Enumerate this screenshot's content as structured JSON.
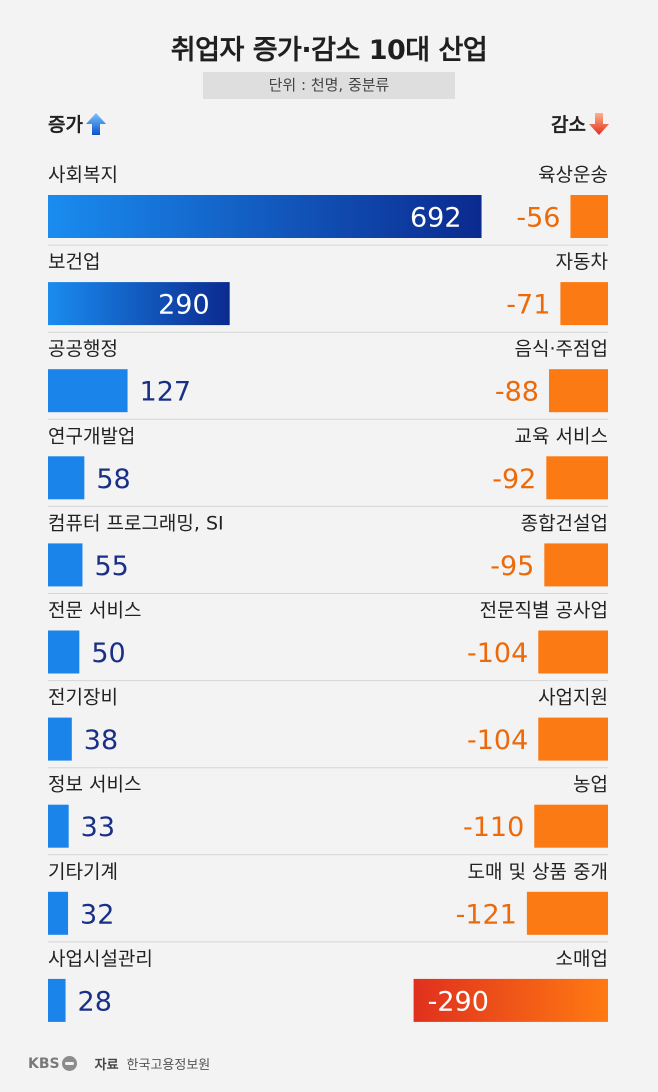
{
  "title": "취업자 증가·감소 10대 산업",
  "unit": "단위 : 천명, 중분류",
  "increase_label": "증가",
  "decrease_label": "감소",
  "colors": {
    "increase_light": "#1a8cf0",
    "increase_dark": "#0b2a8f",
    "decrease_light": "#ff7a12",
    "decrease_dark": "#e0301e",
    "increase_text": "#1a2f86",
    "decrease_text": "#ec6a0a"
  },
  "chart_data": {
    "type": "bar",
    "title": "취업자 증가·감소 10대 산업",
    "subtitle": "단위 : 천명, 중분류",
    "series": [
      {
        "name": "증가",
        "categories": [
          "사회복지",
          "보건업",
          "공공행정",
          "연구개발업",
          "컴퓨터 프로그래밍, SI",
          "전문 서비스",
          "전기장비",
          "정보 서비스",
          "기타기계",
          "사업시설관리"
        ],
        "values": [
          692,
          290,
          127,
          58,
          55,
          50,
          38,
          33,
          32,
          28
        ]
      },
      {
        "name": "감소",
        "categories": [
          "육상운송",
          "자동차",
          "음식·주점업",
          "교육 서비스",
          "종합건설업",
          "전문직별 공사업",
          "사업지원",
          "농업",
          "도매 및 상품 중개",
          "소매업"
        ],
        "values": [
          -56,
          -71,
          -88,
          -92,
          -95,
          -104,
          -104,
          -110,
          -121,
          -290
        ]
      }
    ]
  },
  "footer": {
    "logo": "KBS",
    "source_label": "자료",
    "source": "한국고용정보원"
  }
}
